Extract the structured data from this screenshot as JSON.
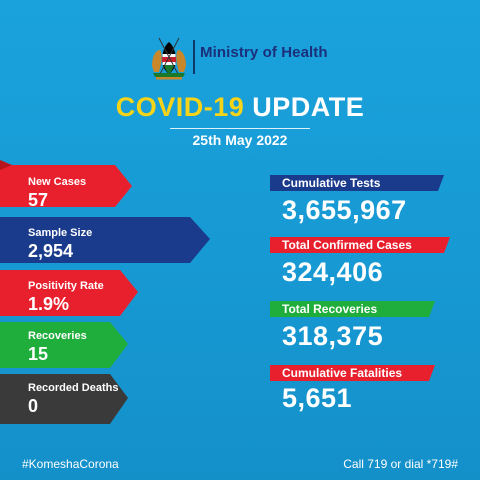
{
  "header": {
    "ministry_text": "Ministry of Health",
    "crest_icon": "kenya-coat-of-arms-icon"
  },
  "title": {
    "highlight": "COVID-19",
    "rest": "UPDATE",
    "date": "25th May 2022"
  },
  "daily": [
    {
      "label": "New Cases",
      "value": "57",
      "color": "#e8202e"
    },
    {
      "label": "Sample Size",
      "value": "2,954",
      "color": "#1a3a8c"
    },
    {
      "label": "Positivity Rate",
      "value": "1.9%",
      "color": "#e8202e"
    },
    {
      "label": "Recoveries",
      "value": "15",
      "color": "#1fae3c"
    },
    {
      "label": "Recorded Deaths",
      "value": "0",
      "color": "#3a3a3a"
    }
  ],
  "cumulative": [
    {
      "label": "Cumulative Tests",
      "value": "3,655,967",
      "color": "#1a3a8c"
    },
    {
      "label": "Total Confirmed Cases",
      "value": "324,406",
      "color": "#e8202e"
    },
    {
      "label": "Total Recoveries",
      "value": "318,375",
      "color": "#1fae3c"
    },
    {
      "label": "Cumulative Fatalities",
      "value": "5,651",
      "color": "#e8202e"
    }
  ],
  "footer": {
    "hashtag": "#KomeshaCorona",
    "call": "Call 719 or dial *719#"
  },
  "colors": {
    "background": "#1799d3",
    "accent_yellow": "#f7d417",
    "ministry_blue": "#1b2f7a"
  }
}
